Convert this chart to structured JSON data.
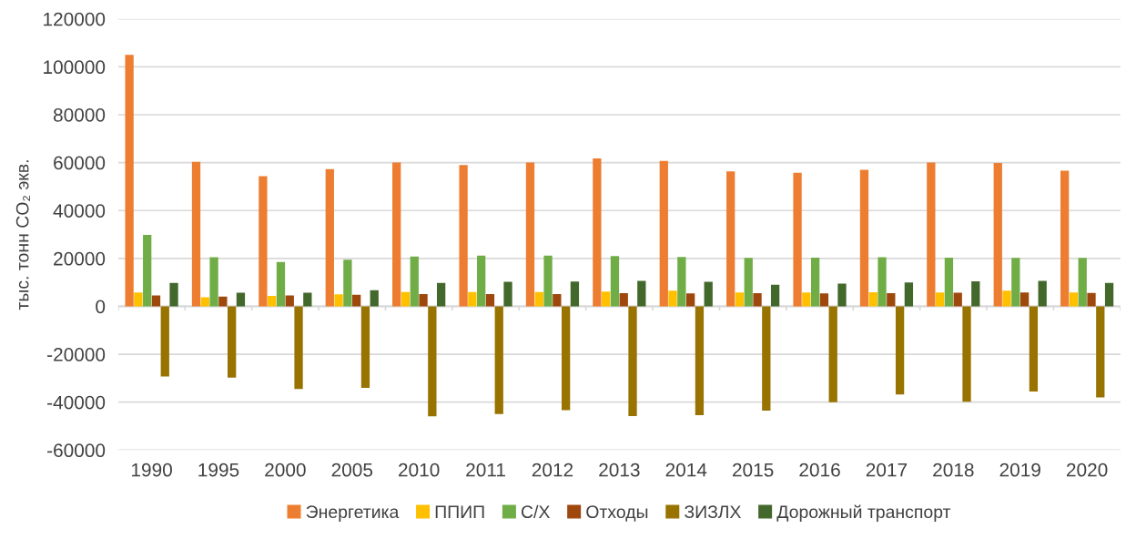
{
  "chart_data": {
    "type": "bar",
    "ylabel": "тыс. тонн CO₂ экв.",
    "categories": [
      "1990",
      "1995",
      "2000",
      "2005",
      "2010",
      "2011",
      "2012",
      "2013",
      "2014",
      "2015",
      "2016",
      "2017",
      "2018",
      "2019",
      "2020"
    ],
    "series": [
      {
        "name": "Энергетика",
        "color": "#ed7d31",
        "values": [
          105000,
          60300,
          54300,
          57300,
          60000,
          59000,
          60000,
          61700,
          60700,
          56300,
          55800,
          57000,
          60000,
          59800,
          56600
        ]
      },
      {
        "name": "ППИП",
        "color": "#ffc000",
        "values": [
          5800,
          3800,
          4400,
          5000,
          6000,
          6000,
          6000,
          6200,
          6500,
          5800,
          5800,
          5900,
          5800,
          6500,
          5800
        ]
      },
      {
        "name": "С/Х",
        "color": "#70ad47",
        "values": [
          29800,
          20500,
          18500,
          19500,
          20800,
          21200,
          21200,
          21000,
          20600,
          20200,
          20300,
          20500,
          20300,
          20200,
          20200
        ]
      },
      {
        "name": "Отходы",
        "color": "#9e480e",
        "values": [
          4500,
          4100,
          4500,
          4800,
          5100,
          5100,
          5100,
          5500,
          5400,
          5500,
          5400,
          5500,
          5700,
          5800,
          5600
        ]
      },
      {
        "name": "ЗИЗЛХ",
        "color": "#997300",
        "values": [
          -29300,
          -29800,
          -34500,
          -34000,
          -45900,
          -45000,
          -43300,
          -45800,
          -45400,
          -43500,
          -40000,
          -36800,
          -39800,
          -35600,
          -38000
        ]
      },
      {
        "name": "Дорожный транспорт",
        "color": "#43682b",
        "values": [
          9800,
          5700,
          5700,
          6700,
          9800,
          10200,
          10300,
          10600,
          10200,
          9000,
          9500,
          10000,
          10400,
          10600,
          9800
        ]
      }
    ],
    "ylim": [
      -60000,
      120000
    ],
    "yticks": [
      -60000,
      -40000,
      -20000,
      0,
      20000,
      40000,
      60000,
      80000,
      100000,
      120000
    ],
    "grid": "y",
    "legend": "bottom"
  }
}
